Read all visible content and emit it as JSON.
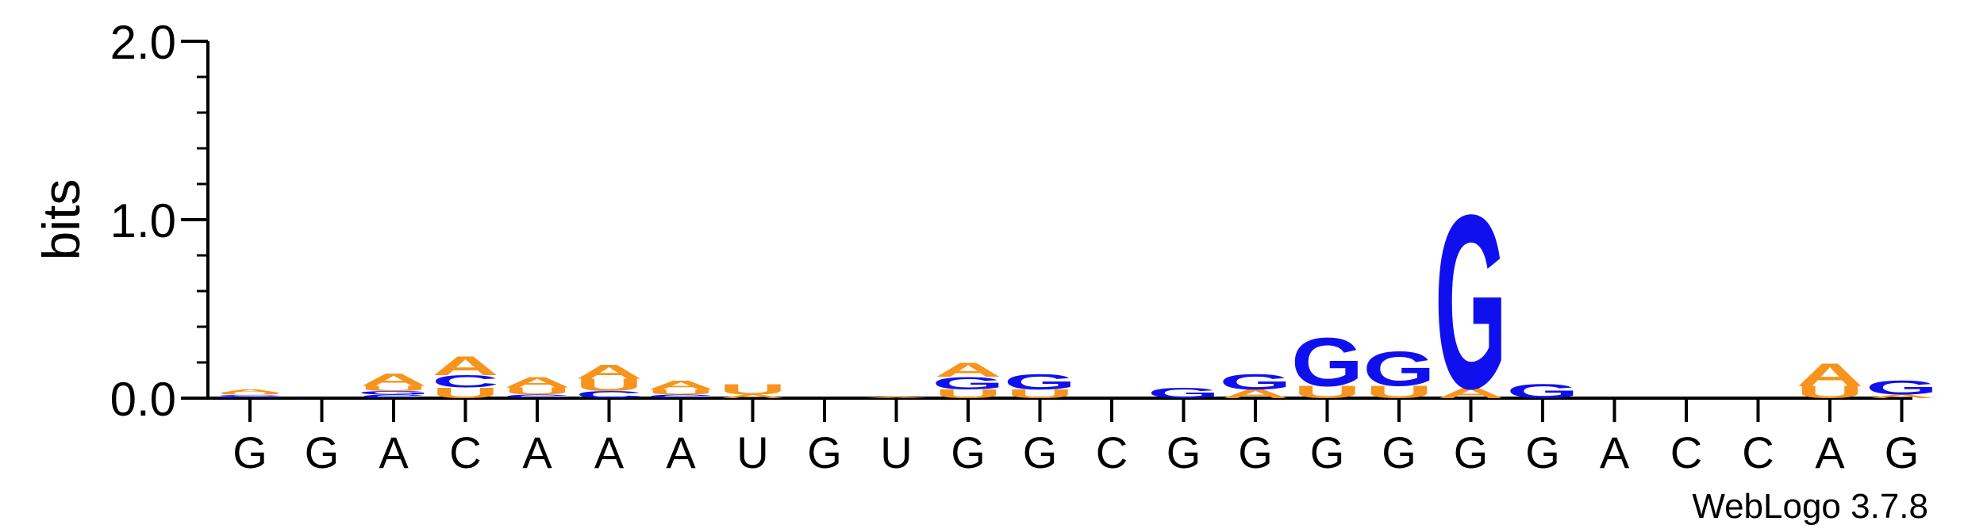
{
  "chart_data": {
    "type": "sequence-logo",
    "ylabel": "bits",
    "ylim": [
      0,
      2.0
    ],
    "yticks": [
      "0.0",
      "1.0",
      "2.0"
    ],
    "xticks": [
      "G",
      "G",
      "A",
      "C",
      "A",
      "A",
      "A",
      "U",
      "G",
      "U",
      "G",
      "G",
      "C",
      "G",
      "G",
      "G",
      "G",
      "G",
      "G",
      "A",
      "C",
      "C",
      "A",
      "G"
    ],
    "credit": "WebLogo 3.7.8",
    "colors": {
      "A": "#f7941d",
      "U": "#f7941d",
      "C": "#1010ee",
      "G": "#1010ee"
    },
    "positions": [
      [
        [
          "G",
          0.01
        ],
        [
          "C",
          0.01
        ],
        [
          "U",
          0.01
        ],
        [
          "A",
          0.02
        ]
      ],
      [
        [
          "G",
          0.003
        ]
      ],
      [
        [
          "C",
          0.02
        ],
        [
          "G",
          0.02
        ],
        [
          "U",
          0.03
        ],
        [
          "A",
          0.07
        ]
      ],
      [
        [
          "U",
          0.06
        ],
        [
          "C",
          0.07
        ],
        [
          "A",
          0.11
        ]
      ],
      [
        [
          "C",
          0.02
        ],
        [
          "U",
          0.04
        ],
        [
          "A",
          0.06
        ]
      ],
      [
        [
          "C",
          0.04
        ],
        [
          "U",
          0.07
        ],
        [
          "A",
          0.08
        ]
      ],
      [
        [
          "C",
          0.02
        ],
        [
          "U",
          0.03
        ],
        [
          "A",
          0.05
        ]
      ],
      [
        [
          "A",
          0.02
        ],
        [
          "U",
          0.06
        ]
      ],
      [],
      [
        [
          "A",
          0.006
        ]
      ],
      [
        [
          "U",
          0.05
        ],
        [
          "G",
          0.07
        ],
        [
          "A",
          0.08
        ]
      ],
      [
        [
          "U",
          0.05
        ],
        [
          "G",
          0.09
        ]
      ],
      [],
      [
        [
          "G",
          0.06
        ]
      ],
      [
        [
          "A",
          0.05
        ],
        [
          "G",
          0.09
        ]
      ],
      [
        [
          "U",
          0.07
        ],
        [
          "G",
          0.28
        ]
      ],
      [
        [
          "U",
          0.07
        ],
        [
          "G",
          0.2
        ]
      ],
      [
        [
          "A",
          0.06
        ],
        [
          "G",
          1.0
        ]
      ],
      [
        [
          "G",
          0.08
        ]
      ],
      [],
      [],
      [],
      [
        [
          "U",
          0.07
        ],
        [
          "A",
          0.13
        ]
      ],
      [
        [
          "A",
          0.02
        ],
        [
          "G",
          0.08
        ]
      ]
    ]
  }
}
